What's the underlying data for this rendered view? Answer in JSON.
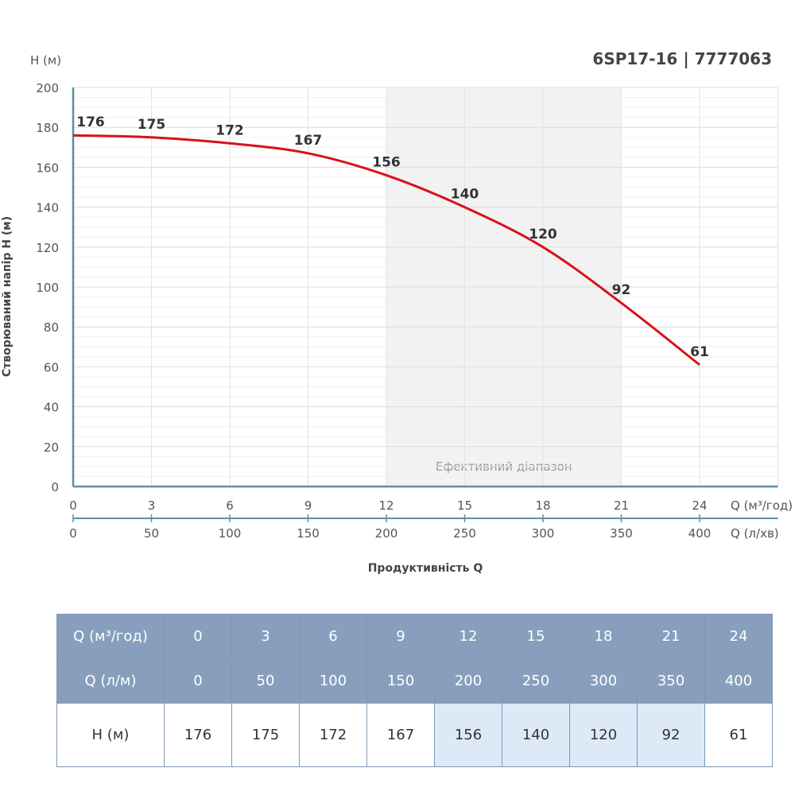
{
  "chart_data": {
    "type": "line",
    "title": "6SP17-16 | 7777063",
    "ylabel": "Створюваний напір H (м)",
    "yunit": "H (м)",
    "xlabel": "Продуктивність Q",
    "x_unit": "Q (м³/год)",
    "x2_unit": "Q (л/хв)",
    "ylim": [
      0,
      200
    ],
    "xlim": [
      0,
      27
    ],
    "yticks": [
      0,
      20,
      40,
      60,
      80,
      100,
      120,
      140,
      160,
      180,
      200
    ],
    "x": [
      0,
      3,
      6,
      9,
      12,
      15,
      18,
      21,
      24
    ],
    "x2": [
      0,
      50,
      100,
      150,
      200,
      250,
      300,
      350,
      400
    ],
    "series": [
      {
        "values": [
          176,
          175,
          172,
          167,
          156,
          140,
          120,
          92,
          61
        ]
      }
    ],
    "grid": true,
    "efficient_range": {
      "label": "Ефективний діапазон",
      "from": 12,
      "to": 21
    },
    "colors": {
      "line": "#d9111b",
      "axis": "#5d8ea6",
      "band": "#f2f2f2",
      "grid": "#e2e2e2"
    }
  },
  "table": {
    "row_labels": [
      "Q (м³/год)",
      "Q (л/м)",
      "H (м)"
    ],
    "q_m3h": [
      "0",
      "3",
      "6",
      "9",
      "12",
      "15",
      "18",
      "21",
      "24"
    ],
    "q_lm": [
      "0",
      "50",
      "100",
      "150",
      "200",
      "250",
      "300",
      "350",
      "400"
    ],
    "h_m": [
      "176",
      "175",
      "172",
      "167",
      "156",
      "140",
      "120",
      "92",
      "61"
    ],
    "highlight_cols": [
      4,
      5,
      6,
      7
    ],
    "colors": {
      "header": "#879fbd",
      "highlight": "#dde9f7"
    }
  }
}
